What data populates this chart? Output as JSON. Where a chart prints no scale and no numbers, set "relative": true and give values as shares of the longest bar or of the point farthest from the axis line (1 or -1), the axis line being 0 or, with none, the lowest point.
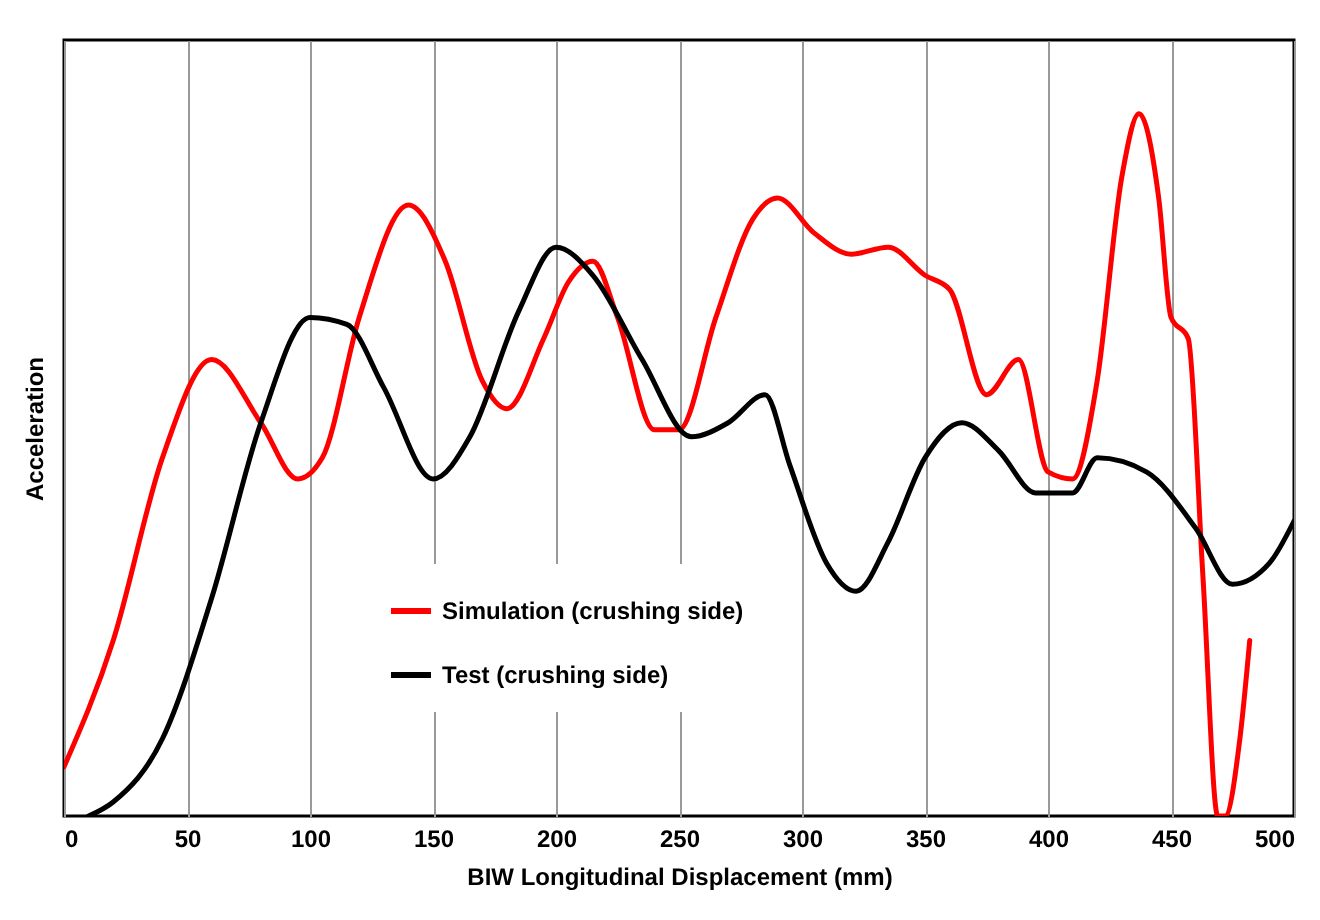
{
  "chart_data": {
    "type": "line",
    "relative": true,
    "xlabel": "BIW Longitudinal Displacement (mm)",
    "ylabel": "Acceleration",
    "xlim": [
      0,
      500
    ],
    "xticks": [
      0,
      50,
      100,
      150,
      200,
      250,
      300,
      350,
      400,
      450,
      500
    ],
    "grid": "x",
    "legend": "bottom",
    "series": [
      {
        "name": "Simulation (crushing side)",
        "color": "#ff0000",
        "x": [
          0,
          20,
          40,
          60,
          80,
          95,
          105,
          120,
          140,
          155,
          170,
          180,
          195,
          205,
          215,
          225,
          240,
          250,
          265,
          280,
          290,
          305,
          320,
          335,
          350,
          360,
          375,
          388,
          400,
          410,
          420,
          430,
          437,
          445,
          450,
          457,
          463,
          469,
          472,
          478,
          482
        ],
        "values": [
          0.07,
          0.25,
          0.51,
          0.65,
          0.56,
          0.48,
          0.51,
          0.71,
          0.87,
          0.79,
          0.62,
          0.58,
          0.68,
          0.76,
          0.79,
          0.71,
          0.55,
          0.55,
          0.71,
          0.85,
          0.88,
          0.83,
          0.8,
          0.81,
          0.77,
          0.75,
          0.6,
          0.65,
          0.49,
          0.48,
          0.62,
          0.91,
          1.0,
          0.88,
          0.71,
          0.68,
          0.34,
          0.0,
          0.0,
          0.11,
          0.25
        ]
      },
      {
        "name": "Test (crushing side)",
        "color": "#000000",
        "x": [
          10,
          20,
          40,
          60,
          80,
          100,
          115,
          130,
          150,
          165,
          185,
          200,
          215,
          235,
          255,
          270,
          285,
          295,
          310,
          322,
          335,
          350,
          365,
          380,
          395,
          410,
          420,
          440,
          460,
          475,
          490,
          500
        ],
        "values": [
          0.0,
          0.02,
          0.11,
          0.31,
          0.56,
          0.71,
          0.7,
          0.61,
          0.48,
          0.54,
          0.72,
          0.81,
          0.77,
          0.65,
          0.54,
          0.56,
          0.6,
          0.5,
          0.36,
          0.32,
          0.39,
          0.51,
          0.56,
          0.52,
          0.46,
          0.46,
          0.51,
          0.49,
          0.41,
          0.33,
          0.36,
          0.42
        ]
      }
    ]
  }
}
